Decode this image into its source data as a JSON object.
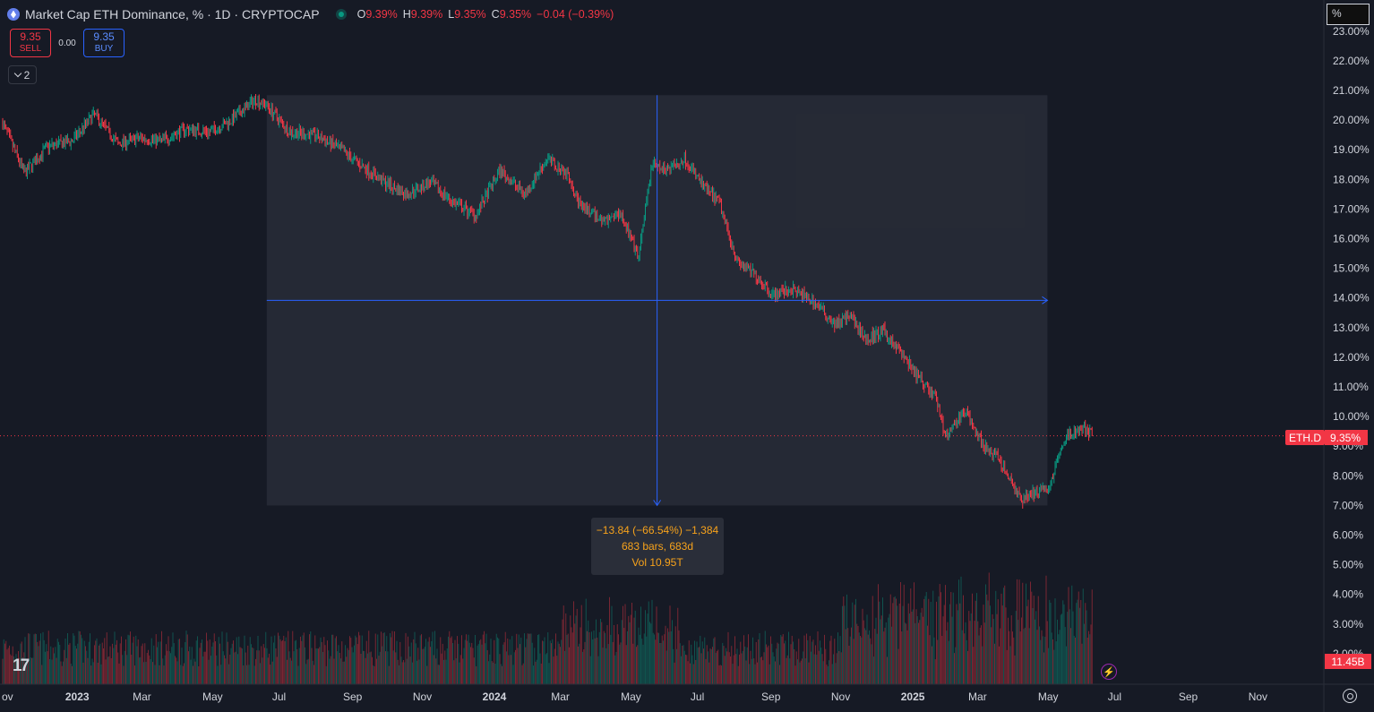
{
  "header": {
    "title": "Market Cap ETH Dominance, % · 1D · CRYPTOCAP",
    "ohlc": [
      {
        "k": "O",
        "v": "9.39%"
      },
      {
        "k": "H",
        "v": "9.39%"
      },
      {
        "k": "L",
        "v": "9.35%"
      },
      {
        "k": "C",
        "v": "9.35%"
      },
      {
        "k": "",
        "v": "−0.04 (−0.39%)"
      }
    ]
  },
  "trade": {
    "sell_price": "9.35",
    "sell_label": "SELL",
    "spread": "0.00",
    "buy_price": "9.35",
    "buy_label": "BUY"
  },
  "indicators_toggle": {
    "count": "2"
  },
  "unit_field": {
    "value": "%"
  },
  "price_axis": {
    "labels": [
      "23.00%",
      "22.00%",
      "21.00%",
      "20.00%",
      "19.00%",
      "18.00%",
      "17.00%",
      "16.00%",
      "15.00%",
      "14.00%",
      "13.00%",
      "12.00%",
      "11.00%",
      "10.00%",
      "9.00%",
      "8.00%",
      "7.00%",
      "6.00%",
      "5.00%",
      "4.00%",
      "3.00%",
      "2.00%"
    ],
    "last_symbol": "ETH.D",
    "last_value": "9.35%",
    "volume_value": "11.45B"
  },
  "time_axis": {
    "labels": [
      "ov",
      "2023",
      "Mar",
      "May",
      "Jul",
      "Sep",
      "Nov",
      "2024",
      "Mar",
      "May",
      "Jul",
      "Sep",
      "Nov",
      "2025",
      "Mar",
      "May",
      "Jul",
      "Sep",
      "Nov"
    ]
  },
  "measure": {
    "line1": "−13.84 (−66.54%) −1,384",
    "line2": "683 bars, 683d",
    "line3": "Vol 10.95T"
  },
  "colors": {
    "background": "#161a25",
    "up": "#089981",
    "down": "#f23645",
    "measure": "#2962ff",
    "measure_text": "#f7a21b"
  },
  "chart_data": {
    "type": "line",
    "title": "Market Cap ETH Dominance, % · 1D · CRYPTOCAP",
    "xlabel": "",
    "ylabel": "",
    "ylim": [
      1.8,
      23.5
    ],
    "x": [
      "2022-11-01",
      "2022-11-20",
      "2022-12-10",
      "2023-01-01",
      "2023-01-20",
      "2023-02-10",
      "2023-03-01",
      "2023-03-20",
      "2023-04-10",
      "2023-05-01",
      "2023-05-20",
      "2023-06-10",
      "2023-06-20",
      "2023-07-10",
      "2023-08-01",
      "2023-08-20",
      "2023-09-10",
      "2023-10-01",
      "2023-10-20",
      "2023-11-10",
      "2023-12-01",
      "2023-12-20",
      "2024-01-10",
      "2024-02-01",
      "2024-02-20",
      "2024-03-10",
      "2024-03-20",
      "2024-04-10",
      "2024-04-25",
      "2024-05-10",
      "2024-05-22",
      "2024-06-01",
      "2024-06-20",
      "2024-07-05",
      "2024-07-20",
      "2024-08-05",
      "2024-08-20",
      "2024-09-05",
      "2024-09-20",
      "2024-10-10",
      "2024-10-30",
      "2024-11-10",
      "2024-11-25",
      "2024-12-10",
      "2024-12-25",
      "2025-01-10",
      "2025-01-25",
      "2025-02-03",
      "2025-02-20",
      "2025-03-05",
      "2025-03-20",
      "2025-04-10",
      "2025-04-25",
      "2025-05-05",
      "2025-05-15",
      "2025-05-25",
      "2025-06-05",
      "2025-06-12"
    ],
    "values": [
      19.9,
      18.2,
      19.1,
      19.3,
      20.2,
      19.2,
      19.4,
      19.3,
      19.7,
      19.6,
      20.0,
      20.7,
      20.5,
      19.6,
      19.5,
      19.1,
      18.5,
      17.9,
      17.5,
      17.9,
      17.2,
      16.8,
      18.3,
      17.5,
      18.7,
      18.2,
      17.1,
      16.6,
      16.9,
      15.3,
      18.5,
      18.3,
      18.7,
      17.8,
      17.2,
      15.2,
      14.8,
      14.1,
      14.3,
      13.9,
      13.1,
      13.5,
      12.6,
      12.9,
      12.2,
      11.3,
      10.7,
      9.3,
      10.2,
      9.2,
      8.6,
      7.2,
      7.5,
      7.6,
      9.1,
      9.5,
      9.6,
      9.35
    ],
    "volume_unit": "B",
    "last_volume": 11.45,
    "measure_from": "2023-06-20",
    "measure_to": "2025-05-03",
    "measure_range": [
      7.0,
      20.84
    ]
  }
}
